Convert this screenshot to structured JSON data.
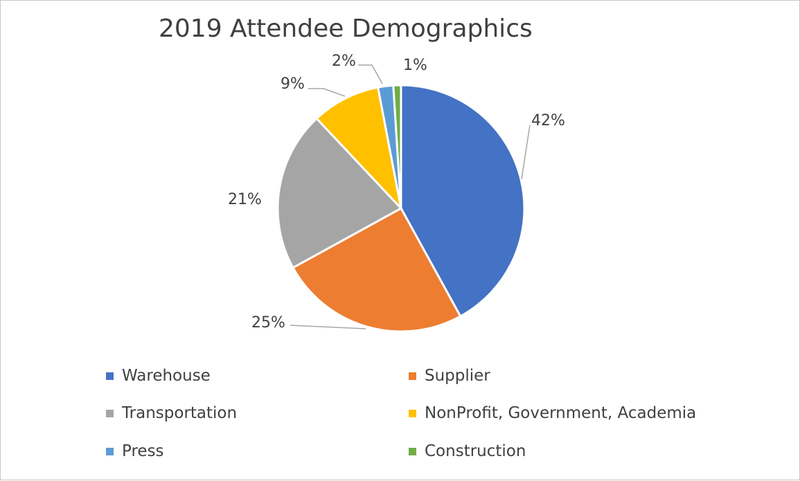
{
  "chart_data": {
    "type": "pie",
    "title": "2019 Attendee Demographics",
    "slices": [
      {
        "label": "Warehouse",
        "value": 42,
        "data_label": "42%",
        "color": "#4472C4"
      },
      {
        "label": "Supplier",
        "value": 25,
        "data_label": "25%",
        "color": "#ED7D31"
      },
      {
        "label": "Transportation",
        "value": 21,
        "data_label": "21%",
        "color": "#A5A5A5"
      },
      {
        "label": "NonProfit, Government, Academia",
        "value": 9,
        "data_label": "9%",
        "color": "#FFC000"
      },
      {
        "label": "Press",
        "value": 2,
        "data_label": "2%",
        "color": "#5B9BD5"
      },
      {
        "label": "Construction",
        "value": 1,
        "data_label": "1%",
        "color": "#70AD47"
      }
    ],
    "legend_position": "bottom"
  }
}
